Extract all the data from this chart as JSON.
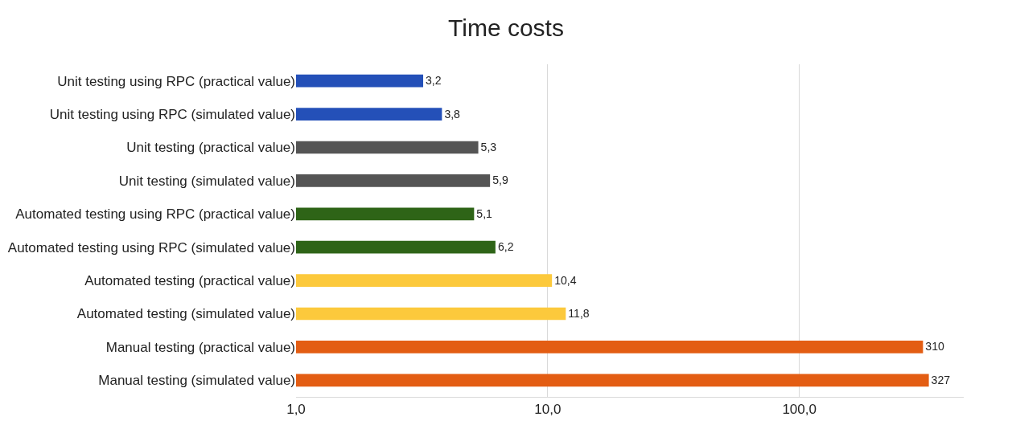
{
  "chart_data": {
    "type": "bar",
    "title": "Time costs",
    "orientation": "horizontal",
    "categories": [
      "Unit testing using RPC (practical value)",
      "Unit testing using RPC (simulated value)",
      "Unit testing (practical value)",
      "Unit testing (simulated value)",
      "Automated testing using RPC (practical value)",
      "Automated testing using RPC (simulated value)",
      "Automated testing (practical value)",
      "Automated testing (simulated value)",
      "Manual testing (practical value)",
      "Manual testing (simulated value)"
    ],
    "values": [
      3.2,
      3.8,
      5.3,
      5.9,
      5.1,
      6.2,
      10.4,
      11.8,
      310,
      327
    ],
    "value_labels": [
      "3,2",
      "3,8",
      "5,3",
      "5,9",
      "5,1",
      "6,2",
      "10,4",
      "11,8",
      "310",
      "327"
    ],
    "colors": [
      "#2450b8",
      "#2450b8",
      "#555555",
      "#555555",
      "#2e6417",
      "#2e6417",
      "#fcc93c",
      "#fcc93c",
      "#e35d13",
      "#e35d13"
    ],
    "log": "x",
    "xlim": [
      1,
      450
    ],
    "xticks": [
      {
        "value": 1,
        "label": "1,0"
      },
      {
        "value": 10,
        "label": "10,0"
      },
      {
        "value": 100,
        "label": "100,0"
      }
    ],
    "grid": "x"
  }
}
